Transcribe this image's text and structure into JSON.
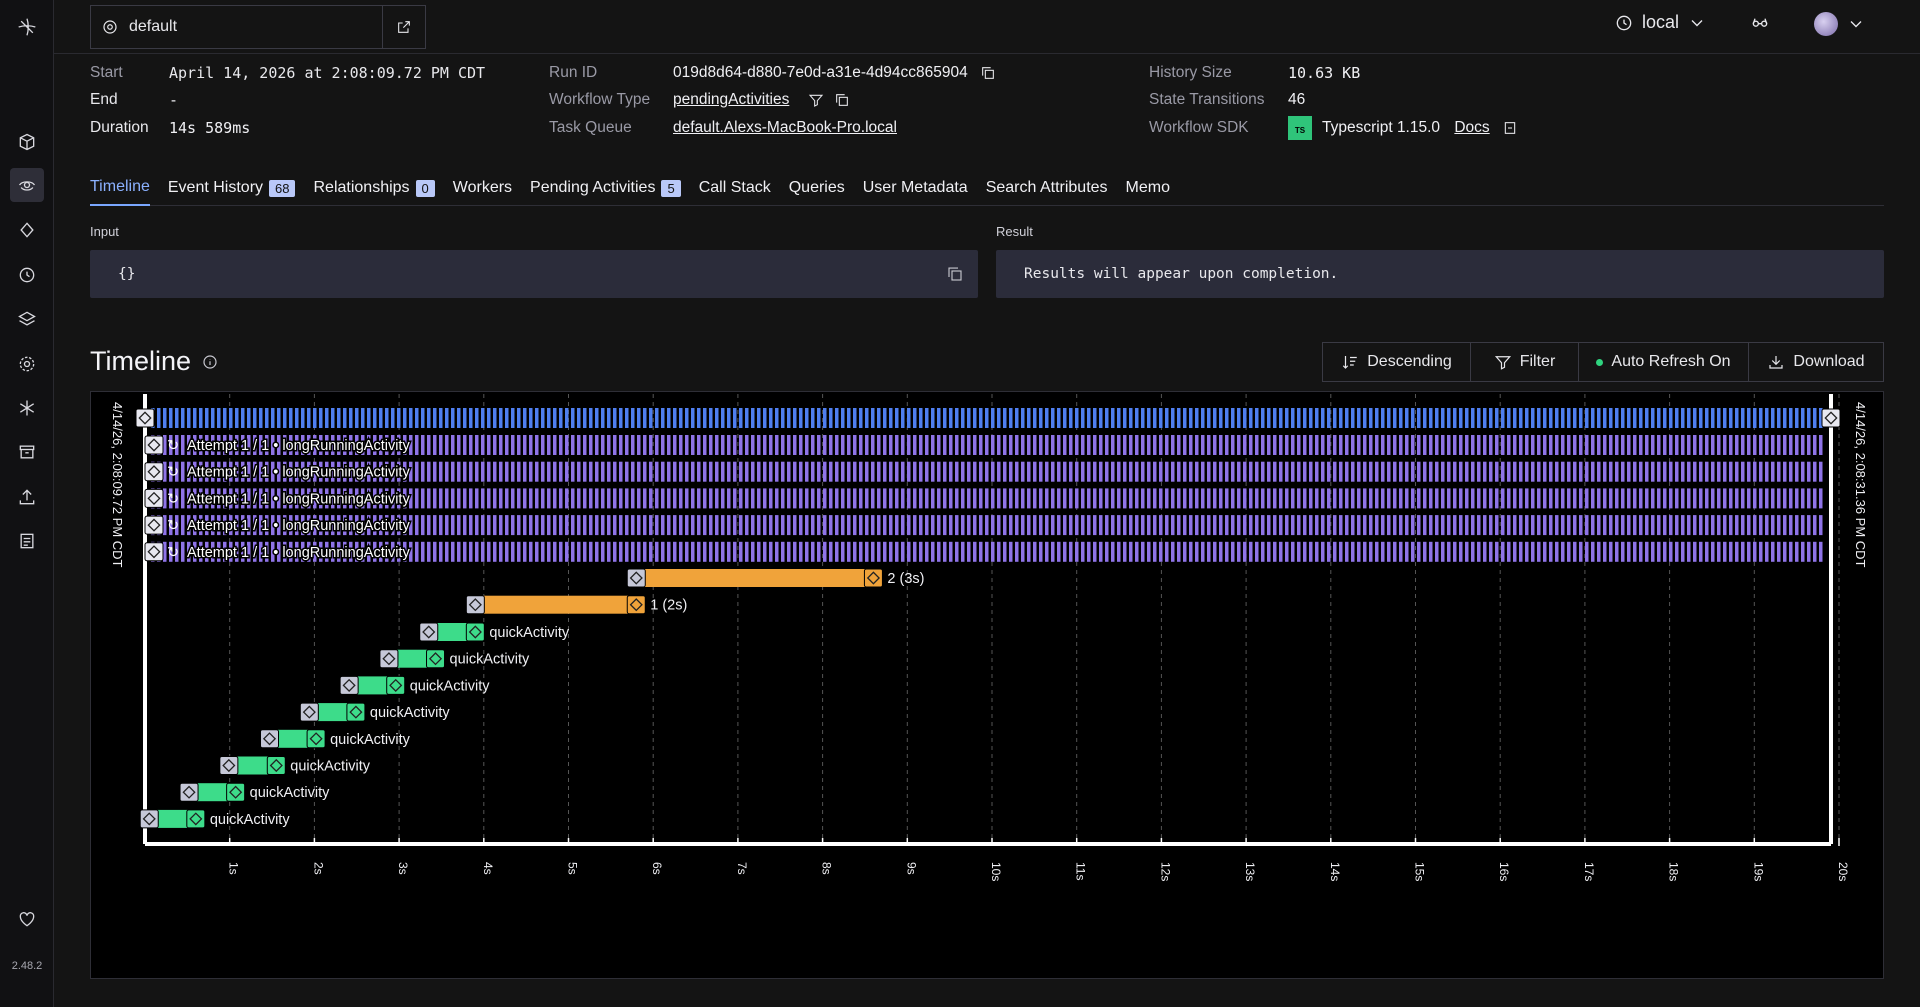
{
  "app": {
    "version": "2.48.2",
    "namespace": "default",
    "environment": "local"
  },
  "sidebar": {
    "icons": [
      "cube-icon",
      "workflows-eye-icon",
      "diamond-icon",
      "schedules-clock-icon",
      "layers-icon",
      "settings-gear-icon",
      "nexus-asterisk-icon",
      "archive-icon",
      "upload-icon",
      "docs-icon",
      "heart-icon"
    ]
  },
  "details": {
    "start_label": "Start",
    "start_value": "April 14, 2026 at 2:08:09.72 PM CDT",
    "end_label": "End",
    "end_value": "-",
    "duration_label": "Duration",
    "duration_value": "14s 589ms",
    "run_id_label": "Run ID",
    "run_id_value": "019d8d64-d880-7e0d-a31e-4d94cc865904",
    "workflow_type_label": "Workflow Type",
    "workflow_type_value": "pendingActivities",
    "task_queue_label": "Task Queue",
    "task_queue_value": "default.Alexs-MacBook-Pro.local",
    "history_size_label": "History Size",
    "history_size_value": "10.63 KB",
    "state_transitions_label": "State Transitions",
    "state_transitions_value": "46",
    "sdk_label": "Workflow SDK",
    "sdk_badge": "TS",
    "sdk_value": "Typescript 1.15.0",
    "docs_label": "Docs"
  },
  "tabs": [
    {
      "label": "Timeline",
      "count": null,
      "active": true
    },
    {
      "label": "Event History",
      "count": "68"
    },
    {
      "label": "Relationships",
      "count": "0"
    },
    {
      "label": "Workers",
      "count": null
    },
    {
      "label": "Pending Activities",
      "count": "5"
    },
    {
      "label": "Call Stack",
      "count": null
    },
    {
      "label": "Queries",
      "count": null
    },
    {
      "label": "User Metadata",
      "count": null
    },
    {
      "label": "Search Attributes",
      "count": null
    },
    {
      "label": "Memo",
      "count": null
    }
  ],
  "input": {
    "label": "Input",
    "value": "{}"
  },
  "result": {
    "label": "Result",
    "value": "Results will appear upon completion."
  },
  "timeline": {
    "title": "Timeline",
    "actions": [
      "Descending",
      "Filter",
      "Auto Refresh On",
      "Download"
    ],
    "start_stamp": "4/14/26, 2:08:09.72 PM CDT",
    "end_stamp": "4/14/26, 2:08:31.36 PM CDT",
    "colors": {
      "workflow": "#4f7ff0",
      "pending_activity": "#8f74e8",
      "timer": "#f0a33a",
      "activity": "#3ddc8a"
    },
    "ticks": [
      "1s",
      "2s",
      "3s",
      "4s",
      "5s",
      "6s",
      "7s",
      "8s",
      "9s",
      "10s",
      "11s",
      "12s",
      "13s",
      "14s",
      "15s",
      "16s",
      "17s",
      "18s",
      "19s",
      "20s"
    ],
    "pending_rows": [
      {
        "label": "Attempt 1 / 1 • longRunningActivity"
      },
      {
        "label": "Attempt 1 / 1 • longRunningActivity"
      },
      {
        "label": "Attempt 1 / 1 • longRunningActivity"
      },
      {
        "label": "Attempt 1 / 1 • longRunningActivity"
      },
      {
        "label": "Attempt 1 / 1 • longRunningActivity"
      }
    ],
    "timers": [
      {
        "label": "2 (3s)",
        "start_s": 5.8,
        "end_s": 8.6
      },
      {
        "label": "1 (2s)",
        "start_s": 3.9,
        "end_s": 5.8
      }
    ],
    "activities": [
      {
        "label": "quickActivity",
        "start_s": 3.35,
        "end_s": 3.9
      },
      {
        "label": "quickActivity",
        "start_s": 2.88,
        "end_s": 3.43
      },
      {
        "label": "quickActivity",
        "start_s": 2.41,
        "end_s": 2.96
      },
      {
        "label": "quickActivity",
        "start_s": 1.94,
        "end_s": 2.49
      },
      {
        "label": "quickActivity",
        "start_s": 1.47,
        "end_s": 2.02
      },
      {
        "label": "quickActivity",
        "start_s": 0.99,
        "end_s": 1.55
      },
      {
        "label": "quickActivity",
        "start_s": 0.52,
        "end_s": 1.07
      },
      {
        "label": "quickActivity",
        "start_s": 0.05,
        "end_s": 0.6
      }
    ]
  }
}
